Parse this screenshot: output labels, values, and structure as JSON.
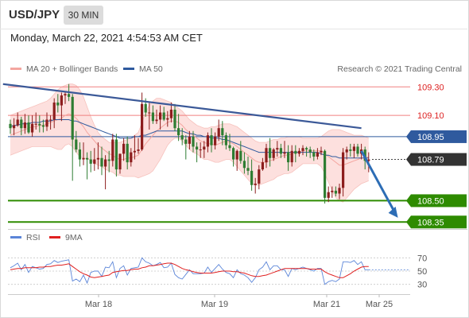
{
  "header": {
    "pair": "USD/JPY",
    "timeframe": "30 MIN"
  },
  "timestamp": "Monday, March 22, 2021 4:54:53 AM CET",
  "legend": {
    "bollinger": "MA 20 + Bollinger Bands",
    "ma50": "MA 50",
    "credit": "Research © 2021 Trading Central",
    "rsi": "RSI",
    "rsi_ma": "9MA"
  },
  "colors": {
    "bollinger": "#f4a6a0",
    "bollinger_band_fill": "#fde0de",
    "ma50": "#2f5a9e",
    "candle_up": "#8c1d1d",
    "candle_down": "#2e7d32",
    "resistance": "#f08080",
    "support": "#2e8b00",
    "current_price": "#2f5a9e",
    "trendline": "#3b5998",
    "arrow": "#2d6db5",
    "rsi": "#5b85d8",
    "rsi_ma": "#e02020"
  },
  "chart_data": {
    "type": "candlestick",
    "x_axis_labels": [
      "Mar 18",
      "Mar 19",
      "Mar 21",
      "Mar 25"
    ],
    "price_range": [
      108.29,
      109.38
    ],
    "levels": [
      {
        "value": 109.3,
        "label": "109.30",
        "kind": "resistance"
      },
      {
        "value": 109.1,
        "label": "109.10",
        "kind": "resistance"
      },
      {
        "value": 108.95,
        "label": "108.95",
        "kind": "pivot"
      },
      {
        "value": 108.79,
        "label": "108.79",
        "kind": "current"
      },
      {
        "value": 108.5,
        "label": "108.50",
        "kind": "support"
      },
      {
        "value": 108.35,
        "label": "108.35",
        "kind": "support"
      }
    ],
    "ohlc": [
      [
        109.04,
        109.07,
        108.97,
        109.01
      ],
      [
        109.01,
        109.08,
        108.96,
        109.03
      ],
      [
        109.03,
        109.12,
        109.02,
        109.07
      ],
      [
        109.07,
        109.09,
        108.96,
        109.01
      ],
      [
        109.01,
        109.11,
        108.97,
        109.05
      ],
      [
        109.05,
        109.1,
        108.97,
        108.98
      ],
      [
        108.98,
        109.1,
        108.95,
        109.04
      ],
      [
        109.04,
        109.12,
        109,
        109.04
      ],
      [
        109.04,
        109.1,
        108.98,
        109.03
      ],
      [
        109.03,
        109.07,
        108.98,
        109.02
      ],
      [
        109.02,
        109.12,
        108.99,
        109.07
      ],
      [
        109.07,
        109.1,
        109,
        109.07
      ],
      [
        109.07,
        109.22,
        109.01,
        109.19
      ],
      [
        109.19,
        109.25,
        109.12,
        109.17
      ],
      [
        109.17,
        109.26,
        109.06,
        109.24
      ],
      [
        109.24,
        109.27,
        109.18,
        109.25
      ],
      [
        109.25,
        109.32,
        109.2,
        109.23
      ],
      [
        109.23,
        109.25,
        108.64,
        108.93
      ],
      [
        108.93,
        108.99,
        108.84,
        108.86
      ],
      [
        108.86,
        108.91,
        108.74,
        108.79
      ],
      [
        108.79,
        108.91,
        108.75,
        108.8
      ],
      [
        108.8,
        108.84,
        108.65,
        108.79
      ],
      [
        108.79,
        108.85,
        108.7,
        108.76
      ],
      [
        108.76,
        108.87,
        108.71,
        108.79
      ],
      [
        108.79,
        108.91,
        108.72,
        108.8
      ],
      [
        108.8,
        108.88,
        108.68,
        108.74
      ],
      [
        108.74,
        108.82,
        108.58,
        108.79
      ],
      [
        108.79,
        108.85,
        108.7,
        108.78
      ],
      [
        108.78,
        108.97,
        108.74,
        108.93
      ],
      [
        108.93,
        108.97,
        108.67,
        108.72
      ],
      [
        108.72,
        108.83,
        108.69,
        108.83
      ],
      [
        108.83,
        108.94,
        108.78,
        108.9
      ],
      [
        108.9,
        108.95,
        108.72,
        108.77
      ],
      [
        108.77,
        108.87,
        108.74,
        108.84
      ],
      [
        108.84,
        108.96,
        108.79,
        108.85
      ],
      [
        108.85,
        108.94,
        108.83,
        108.86
      ],
      [
        108.86,
        109.26,
        108.85,
        109.18
      ],
      [
        109.18,
        109.22,
        109.09,
        109.12
      ],
      [
        109.12,
        109.19,
        109,
        109.12
      ],
      [
        109.12,
        109.17,
        109.04,
        109.06
      ],
      [
        109.06,
        109.14,
        109.04,
        109.07
      ],
      [
        109.07,
        109.17,
        109,
        109.12
      ],
      [
        109.12,
        109.16,
        109.06,
        109.07
      ],
      [
        109.07,
        109.13,
        109.02,
        109.08
      ],
      [
        109.08,
        109.19,
        109.05,
        109.14
      ],
      [
        109.14,
        109.18,
        108.99,
        109.01
      ],
      [
        109.01,
        109.11,
        108.92,
        108.96
      ],
      [
        108.96,
        109.01,
        108.89,
        108.93
      ],
      [
        108.93,
        108.96,
        108.79,
        108.9
      ],
      [
        108.9,
        108.99,
        108.86,
        108.95
      ],
      [
        108.95,
        108.99,
        108.84,
        108.88
      ],
      [
        108.88,
        108.91,
        108.77,
        108.86
      ],
      [
        108.86,
        108.91,
        108.8,
        108.86
      ],
      [
        108.86,
        108.92,
        108.8,
        108.88
      ],
      [
        108.88,
        108.98,
        108.84,
        108.96
      ],
      [
        108.96,
        109.01,
        108.84,
        108.89
      ],
      [
        108.89,
        108.98,
        108.86,
        108.95
      ],
      [
        108.95,
        109.07,
        108.92,
        109.01
      ],
      [
        109.01,
        109.06,
        108.89,
        108.96
      ],
      [
        108.96,
        108.98,
        108.86,
        108.89
      ],
      [
        108.89,
        108.97,
        108.85,
        108.87
      ],
      [
        108.87,
        108.88,
        108.74,
        108.79
      ],
      [
        108.79,
        108.86,
        108.71,
        108.85
      ],
      [
        108.85,
        108.92,
        108.76,
        108.78
      ],
      [
        108.78,
        108.84,
        108.69,
        108.73
      ],
      [
        108.73,
        108.81,
        108.68,
        108.71
      ],
      [
        108.71,
        108.79,
        108.57,
        108.61
      ],
      [
        108.61,
        108.66,
        108.55,
        108.62
      ],
      [
        108.62,
        108.75,
        108.58,
        108.72
      ],
      [
        108.72,
        108.8,
        108.71,
        108.77
      ],
      [
        108.77,
        108.9,
        108.73,
        108.87
      ],
      [
        108.87,
        108.94,
        108.74,
        108.8
      ],
      [
        108.8,
        108.87,
        108.78,
        108.86
      ],
      [
        108.86,
        108.92,
        108.81,
        108.87
      ],
      [
        108.87,
        108.9,
        108.8,
        108.83
      ],
      [
        108.83,
        108.92,
        108.8,
        108.84
      ],
      [
        108.84,
        108.89,
        108.71,
        108.77
      ],
      [
        108.77,
        108.89,
        108.74,
        108.85
      ],
      [
        108.85,
        108.89,
        108.77,
        108.83
      ],
      [
        108.83,
        108.87,
        108.81,
        108.85
      ],
      [
        108.85,
        108.89,
        108.82,
        108.87
      ],
      [
        108.87,
        108.88,
        108.81,
        108.86
      ],
      [
        108.86,
        108.88,
        108.8,
        108.84
      ],
      [
        108.84,
        108.86,
        108.78,
        108.81
      ],
      [
        108.81,
        108.87,
        108.79,
        108.84
      ],
      [
        108.84,
        108.88,
        108.82,
        108.85
      ],
      [
        108.85,
        108.86,
        108.48,
        108.52
      ],
      [
        108.52,
        108.6,
        108.49,
        108.56
      ],
      [
        108.56,
        108.6,
        108.52,
        108.57
      ],
      [
        108.57,
        108.6,
        108.53,
        108.55
      ],
      [
        108.55,
        108.62,
        108.51,
        108.59
      ],
      [
        108.59,
        108.87,
        108.53,
        108.84
      ],
      [
        108.84,
        108.88,
        108.79,
        108.86
      ],
      [
        108.86,
        108.9,
        108.81,
        108.85
      ],
      [
        108.85,
        108.9,
        108.8,
        108.88
      ],
      [
        108.88,
        108.9,
        108.81,
        108.83
      ],
      [
        108.83,
        108.9,
        108.79,
        108.86
      ],
      [
        108.86,
        108.88,
        108.72,
        108.78
      ],
      [
        108.78,
        108.84,
        108.7,
        108.79
      ]
    ],
    "ma20": [
      108.96,
      108.97,
      108.98,
      108.99,
      109,
      109.01,
      109.02,
      109.02,
      109.03,
      109.03,
      109.04,
      109.05,
      109.06,
      109.07,
      109.08,
      109.1,
      109.11,
      109.1,
      109.08,
      109.05,
      109.02,
      108.98,
      108.95,
      108.92,
      108.89,
      108.87,
      108.85,
      108.83,
      108.82,
      108.8,
      108.79,
      108.79,
      108.8,
      108.8,
      108.81,
      108.82,
      108.86,
      108.9,
      108.93,
      108.96,
      108.99,
      109.01,
      109.03,
      109.05,
      109.06,
      109.06,
      109.05,
      109.03,
      109,
      108.98,
      108.96,
      108.94,
      108.92,
      108.91,
      108.9,
      108.9,
      108.89,
      108.9,
      108.91,
      108.92,
      108.91,
      108.9,
      108.88,
      108.86,
      108.84,
      108.82,
      108.8,
      108.78,
      108.77,
      108.77,
      108.77,
      108.78,
      108.79,
      108.8,
      108.81,
      108.82,
      108.82,
      108.83,
      108.84,
      108.84,
      108.85,
      108.85,
      108.85,
      108.85,
      108.85,
      108.85,
      108.83,
      108.81,
      108.79,
      108.77,
      108.75,
      108.75,
      108.76,
      108.77,
      108.78,
      108.79,
      108.8,
      108.8,
      108.81
    ],
    "bb_upper": [
      109.1,
      109.11,
      109.12,
      109.13,
      109.14,
      109.15,
      109.16,
      109.17,
      109.18,
      109.19,
      109.2,
      109.22,
      109.25,
      109.28,
      109.3,
      109.31,
      109.32,
      109.32,
      109.31,
      109.28,
      109.23,
      109.16,
      109.09,
      109.03,
      108.98,
      108.95,
      108.93,
      108.91,
      108.91,
      108.91,
      108.91,
      108.92,
      108.93,
      108.94,
      108.96,
      108.98,
      109.05,
      109.12,
      109.17,
      109.2,
      109.22,
      109.22,
      109.21,
      109.2,
      109.19,
      109.17,
      109.15,
      109.13,
      109.1,
      109.07,
      109.05,
      109.03,
      109.02,
      109.01,
      109.01,
      109.02,
      109.02,
      109.03,
      109.04,
      109.04,
      109.04,
      109.03,
      109.02,
      109,
      108.98,
      108.96,
      108.94,
      108.92,
      108.91,
      108.91,
      108.91,
      108.92,
      108.93,
      108.93,
      108.94,
      108.94,
      108.95,
      108.95,
      108.95,
      108.95,
      108.94,
      108.94,
      108.94,
      108.94,
      108.94,
      108.95,
      108.97,
      108.99,
      109,
      109,
      109,
      108.99,
      108.98,
      108.97,
      108.96,
      108.96,
      108.96,
      108.95,
      108.94
    ],
    "bb_lower": [
      108.82,
      108.83,
      108.84,
      108.85,
      108.86,
      108.87,
      108.88,
      108.88,
      108.88,
      108.88,
      108.88,
      108.88,
      108.87,
      108.86,
      108.86,
      108.89,
      108.9,
      108.88,
      108.84,
      108.81,
      108.8,
      108.79,
      108.79,
      108.76,
      108.75,
      108.74,
      108.72,
      108.71,
      108.7,
      108.68,
      108.68,
      108.67,
      108.67,
      108.67,
      108.67,
      108.66,
      108.67,
      108.68,
      108.69,
      108.71,
      108.75,
      108.79,
      108.84,
      108.89,
      108.92,
      108.94,
      108.94,
      108.92,
      108.89,
      108.86,
      108.84,
      108.83,
      108.81,
      108.79,
      108.79,
      108.78,
      108.77,
      108.77,
      108.78,
      108.79,
      108.79,
      108.77,
      108.74,
      108.71,
      108.68,
      108.65,
      108.62,
      108.61,
      108.61,
      108.62,
      108.63,
      108.64,
      108.65,
      108.67,
      108.68,
      108.69,
      108.69,
      108.7,
      108.72,
      108.74,
      108.76,
      108.76,
      108.76,
      108.76,
      108.76,
      108.74,
      108.69,
      108.63,
      108.57,
      108.52,
      108.5,
      108.49,
      108.52,
      108.55,
      108.58,
      108.6,
      108.62,
      108.63,
      108.64
    ],
    "ma50": [
      109.02,
      109.03,
      109.03,
      109.04,
      109.04,
      109.04,
      109.05,
      109.05,
      109.05,
      109.06,
      109.06,
      109.06,
      109.07,
      109.07,
      109.07,
      109.07,
      109.07,
      109.06,
      109.06,
      109.05,
      109.04,
      109.03,
      109.02,
      109.01,
      109,
      108.99,
      108.98,
      108.97,
      108.96,
      108.95,
      108.94,
      108.94,
      108.94,
      108.94,
      108.95,
      108.95,
      108.96,
      108.96,
      108.97,
      108.98,
      108.99,
      108.99,
      108.99,
      108.99,
      108.99,
      108.99,
      108.99,
      108.99,
      108.98,
      108.97,
      108.97,
      108.96,
      108.96,
      108.95,
      108.95,
      108.94,
      108.94,
      108.94,
      108.93,
      108.93,
      108.92,
      108.91,
      108.9,
      108.89,
      108.88,
      108.87,
      108.86,
      108.85,
      108.84,
      108.84,
      108.84,
      108.84,
      108.84,
      108.84,
      108.84,
      108.84,
      108.84,
      108.84,
      108.84,
      108.84,
      108.84,
      108.84,
      108.84,
      108.84,
      108.84,
      108.83,
      108.82,
      108.82,
      108.81,
      108.81,
      108.8,
      108.8,
      108.8,
      108.8,
      108.8,
      108.8,
      108.8,
      108.8,
      108.8
    ],
    "trendline": {
      "from": [
        -2,
        109.32
      ],
      "to": [
        96,
        109.01
      ]
    },
    "projection": {
      "from": [
        96,
        108.85
      ],
      "to": [
        106,
        108.38
      ]
    },
    "rsi_axis": [
      30,
      50,
      70
    ],
    "rsi": [
      55,
      58,
      62,
      52,
      60,
      48,
      57,
      55,
      53,
      54,
      60,
      61,
      66,
      63,
      65,
      66,
      67,
      35,
      38,
      34,
      44,
      32,
      48,
      50,
      50,
      42,
      56,
      55,
      64,
      40,
      54,
      58,
      44,
      54,
      55,
      56,
      70,
      64,
      62,
      58,
      60,
      63,
      55,
      56,
      62,
      45,
      40,
      38,
      45,
      52,
      46,
      46,
      46,
      47,
      56,
      48,
      54,
      60,
      53,
      48,
      46,
      40,
      52,
      46,
      44,
      40,
      33,
      40,
      52,
      56,
      64,
      52,
      58,
      58,
      52,
      52,
      42,
      54,
      52,
      54,
      56,
      54,
      52,
      50,
      54,
      54,
      30,
      34,
      36,
      34,
      38,
      64,
      64,
      63,
      66,
      60,
      64,
      52,
      52
    ],
    "rsi_ma": [
      52,
      53,
      54,
      54,
      55,
      55,
      55,
      55,
      56,
      56,
      57,
      57,
      58,
      59,
      59,
      60,
      61,
      57,
      53,
      49,
      46,
      44,
      41,
      40,
      41,
      42,
      43,
      44,
      48,
      49,
      50,
      51,
      51,
      52,
      53,
      53,
      55,
      56,
      58,
      58,
      59,
      60,
      61,
      62,
      62,
      60,
      57,
      54,
      52,
      51,
      49,
      48,
      47,
      47,
      47,
      47,
      48,
      49,
      50,
      50,
      50,
      49,
      49,
      48,
      47,
      45,
      43,
      42,
      42,
      43,
      44,
      46,
      48,
      50,
      52,
      54,
      54,
      54,
      54,
      54,
      54,
      54,
      53,
      53,
      53,
      53,
      49,
      46,
      44,
      42,
      40,
      40,
      43,
      46,
      50,
      53,
      56,
      57,
      57
    ]
  }
}
